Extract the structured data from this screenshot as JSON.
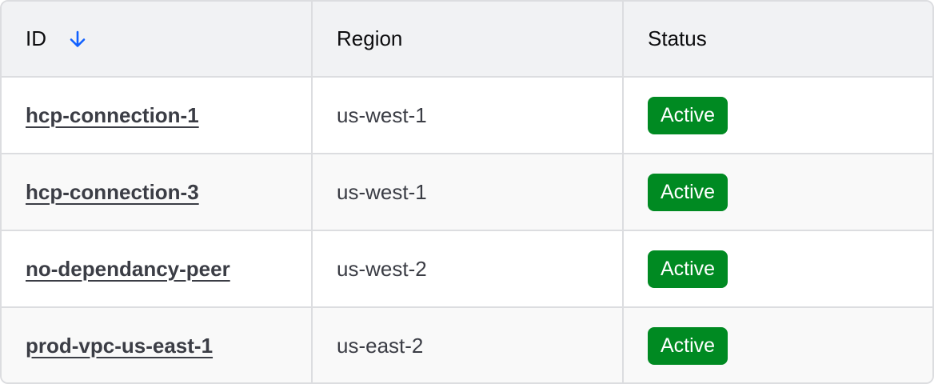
{
  "columns": {
    "id": "ID",
    "region": "Region",
    "status": "Status"
  },
  "sort": {
    "column": "ID",
    "direction": "descending",
    "icon": "arrow-down-icon",
    "color": "#1060ff"
  },
  "rows": [
    {
      "id": "hcp-connection-1",
      "region": "us-west-1",
      "status": "Active"
    },
    {
      "id": "hcp-connection-3",
      "region": "us-west-1",
      "status": "Active"
    },
    {
      "id": "no-dependancy-peer",
      "region": "us-west-2",
      "status": "Active"
    },
    {
      "id": "prod-vpc-us-east-1",
      "region": "us-east-2",
      "status": "Active"
    }
  ],
  "colors": {
    "status_active": "#008a22",
    "header_bg": "#f1f2f4",
    "border": "#dcdde0"
  }
}
